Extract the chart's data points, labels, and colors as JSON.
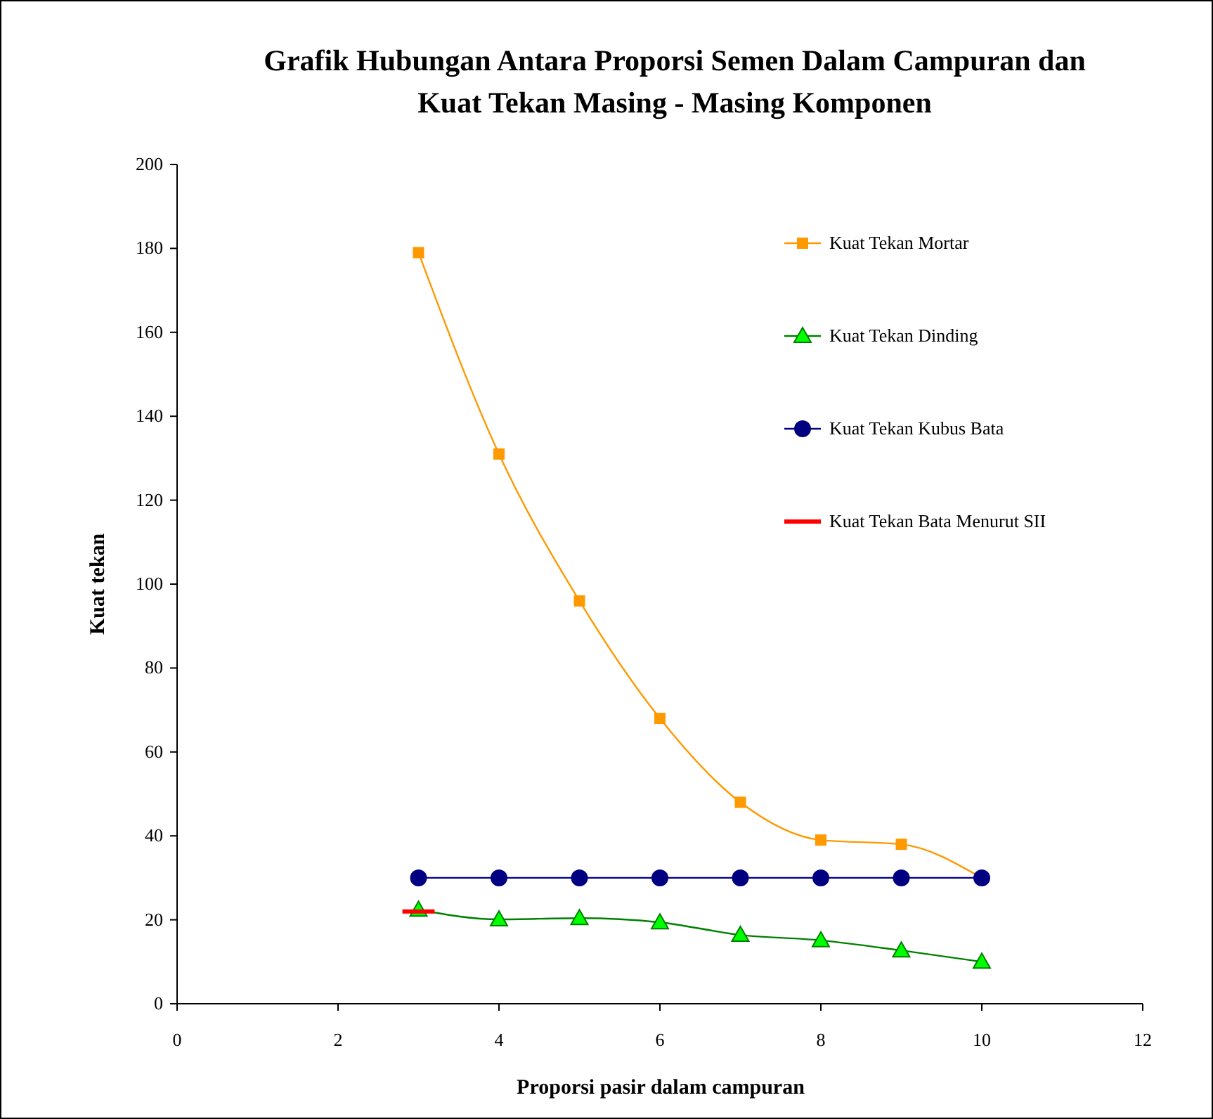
{
  "chart_data": {
    "type": "line",
    "title": "Grafik Hubungan Antara Proporsi Semen Dalam Campuran dan Kuat Tekan Masing - Masing Komponen",
    "xlabel": "Proporsi pasir dalam campuran",
    "ylabel": "Kuat tekan",
    "x": [
      3,
      4,
      5,
      6,
      7,
      8,
      9,
      10
    ],
    "series": [
      {
        "name": "Kuat Tekan Mortar",
        "color": "#ff9900",
        "marker": "square",
        "values": [
          179,
          131,
          96,
          68,
          48,
          39,
          38,
          30
        ]
      },
      {
        "name": "Kuat Tekan Dinding",
        "color": "#008000",
        "marker": "triangle",
        "values": [
          22.4,
          20.1,
          20.4,
          19.4,
          16.4,
          15.1,
          12.7,
          10
        ]
      },
      {
        "name": "Kuat Tekan Kubus Bata",
        "color": "#000080",
        "marker": "circle",
        "values": [
          30,
          30,
          30,
          30,
          30,
          30,
          30,
          30
        ]
      },
      {
        "name": "Kuat Tekan Bata Menurut SII",
        "color": "#ff0000",
        "marker": "none",
        "x": [
          2.8,
          3.2
        ],
        "values": [
          22,
          22
        ]
      }
    ],
    "xlim": [
      0,
      12
    ],
    "xticks": [
      0,
      2,
      4,
      6,
      8,
      10,
      12
    ],
    "ylim": [
      0,
      200
    ],
    "yticks": [
      0,
      20,
      40,
      60,
      80,
      100,
      120,
      140,
      160,
      180,
      200
    ],
    "grid": false,
    "legend": "right"
  }
}
